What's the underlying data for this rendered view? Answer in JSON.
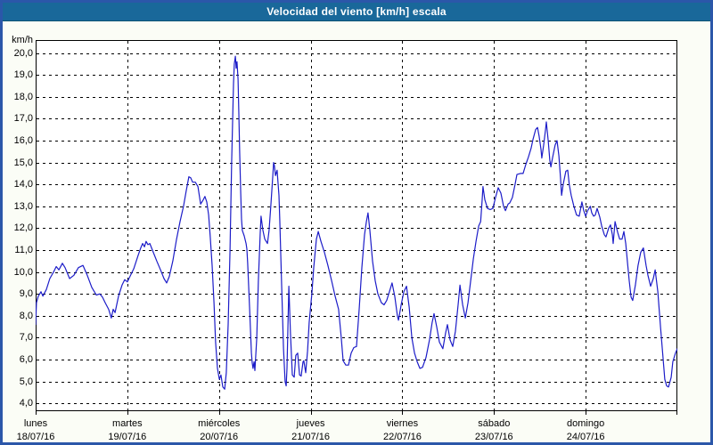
{
  "window": {
    "title": "Velocidad del viento [km/h] escala"
  },
  "colors": {
    "titlebar": "#19689a",
    "window_border": "#2b57a9",
    "window_background": "#fbfdf6",
    "plot_background": "#ffffff",
    "grid": "#000000",
    "line": "#1c1cc8",
    "text": "#000000"
  },
  "chart_data": {
    "type": "line",
    "title": "Velocidad del viento [km/h] escala",
    "y_unit_label": "km/h",
    "ylabel": "km/h",
    "xlabel": "",
    "ylim": [
      4.0,
      20.0
    ],
    "y_tick_step": 1.0,
    "y_tick_labels": [
      "20,0",
      "19,0",
      "18,0",
      "17,0",
      "16,0",
      "15,0",
      "14,0",
      "13,0",
      "12,0",
      "11,0",
      "10,0",
      "9,0",
      "8,0",
      "7,0",
      "6,0",
      "5,0",
      "4,0"
    ],
    "grid": "dashed",
    "legend_position": "none",
    "x_range_hours": [
      0,
      168
    ],
    "x_days": [
      {
        "name": "lunes",
        "date": "18/07/16"
      },
      {
        "name": "martes",
        "date": "19/07/16"
      },
      {
        "name": "miércoles",
        "date": "20/07/16"
      },
      {
        "name": "jueves",
        "date": "21/07/16"
      },
      {
        "name": "viernes",
        "date": "22/07/16"
      },
      {
        "name": "sábado",
        "date": "23/07/16"
      },
      {
        "name": "domingo",
        "date": "24/07/16"
      }
    ],
    "series": [
      {
        "name": "Velocidad del viento",
        "unit": "km/h",
        "color": "#1c1cc8",
        "points": [
          [
            0,
            7.6
          ],
          [
            0.2,
            8.6
          ],
          [
            0.7,
            8.9
          ],
          [
            1.4,
            9.1
          ],
          [
            1.9,
            8.9
          ],
          [
            2.8,
            9.2
          ],
          [
            3.7,
            9.7
          ],
          [
            4.7,
            10.0
          ],
          [
            5.4,
            10.25
          ],
          [
            6.1,
            10.1
          ],
          [
            7,
            10.4
          ],
          [
            7.7,
            10.2
          ],
          [
            8.9,
            9.7
          ],
          [
            10,
            9.85
          ],
          [
            11.2,
            10.2
          ],
          [
            12.4,
            10.3
          ],
          [
            13.5,
            9.85
          ],
          [
            14.7,
            9.3
          ],
          [
            15.9,
            8.95
          ],
          [
            16.8,
            9.0
          ],
          [
            17.5,
            8.85
          ],
          [
            18.2,
            8.6
          ],
          [
            19.1,
            8.3
          ],
          [
            19.8,
            7.9
          ],
          [
            20.3,
            8.3
          ],
          [
            20.8,
            8.15
          ],
          [
            21.7,
            8.9
          ],
          [
            22.6,
            9.4
          ],
          [
            23.3,
            9.65
          ],
          [
            24,
            9.55
          ],
          [
            24.7,
            9.8
          ],
          [
            25.7,
            10.15
          ],
          [
            26.8,
            10.75
          ],
          [
            27.5,
            11.1
          ],
          [
            28,
            11.3
          ],
          [
            28.5,
            11.15
          ],
          [
            28.9,
            11.4
          ],
          [
            29.4,
            11.25
          ],
          [
            29.9,
            11.3
          ],
          [
            30.8,
            10.9
          ],
          [
            31.7,
            10.5
          ],
          [
            32.7,
            10.1
          ],
          [
            33.6,
            9.7
          ],
          [
            34.3,
            9.5
          ],
          [
            35,
            9.8
          ],
          [
            35.9,
            10.5
          ],
          [
            36.9,
            11.5
          ],
          [
            37.8,
            12.3
          ],
          [
            38.7,
            13.0
          ],
          [
            39.4,
            13.7
          ],
          [
            40.1,
            14.35
          ],
          [
            40.6,
            14.3
          ],
          [
            41.1,
            14.1
          ],
          [
            41.8,
            14.1
          ],
          [
            42.5,
            13.9
          ],
          [
            43.2,
            13.1
          ],
          [
            43.9,
            13.3
          ],
          [
            44.3,
            13.45
          ],
          [
            44.8,
            13.2
          ],
          [
            45.3,
            12.6
          ],
          [
            45.7,
            11.6
          ],
          [
            46.2,
            10.3
          ],
          [
            46.7,
            8.6
          ],
          [
            47.1,
            6.8
          ],
          [
            47.6,
            5.6
          ],
          [
            48.1,
            5.1
          ],
          [
            48.5,
            5.3
          ],
          [
            49,
            4.75
          ],
          [
            49.5,
            4.65
          ],
          [
            49.9,
            5.4
          ],
          [
            50.4,
            7.6
          ],
          [
            50.9,
            11.0
          ],
          [
            51.3,
            15.0
          ],
          [
            51.8,
            18.6
          ],
          [
            52,
            19.5
          ],
          [
            52.3,
            19.85
          ],
          [
            52.5,
            19.3
          ],
          [
            52.7,
            19.6
          ],
          [
            53,
            18.8
          ],
          [
            53.2,
            17.2
          ],
          [
            53.4,
            15.5
          ],
          [
            53.7,
            13.6
          ],
          [
            53.9,
            12.4
          ],
          [
            54.1,
            11.9
          ],
          [
            54.6,
            11.65
          ],
          [
            55.1,
            11.3
          ],
          [
            55.3,
            11.05
          ],
          [
            55.5,
            10.4
          ],
          [
            56,
            8.4
          ],
          [
            56.5,
            6.3
          ],
          [
            56.7,
            5.85
          ],
          [
            56.9,
            5.6
          ],
          [
            57.2,
            5.9
          ],
          [
            57.4,
            5.5
          ],
          [
            57.9,
            7.0
          ],
          [
            58.3,
            9.6
          ],
          [
            58.8,
            11.8
          ],
          [
            59,
            12.55
          ],
          [
            59.5,
            11.9
          ],
          [
            60,
            11.5
          ],
          [
            60.7,
            11.3
          ],
          [
            61.1,
            11.9
          ],
          [
            61.6,
            13.1
          ],
          [
            62.1,
            14.4
          ],
          [
            62.3,
            15.0
          ],
          [
            62.5,
            14.85
          ],
          [
            62.8,
            14.4
          ],
          [
            63.2,
            14.65
          ],
          [
            63.7,
            13.5
          ],
          [
            63.9,
            12.4
          ],
          [
            64.4,
            9.4
          ],
          [
            64.9,
            6.5
          ],
          [
            65.3,
            5.0
          ],
          [
            65.6,
            4.8
          ],
          [
            65.8,
            5.6
          ],
          [
            66.3,
            9.35
          ],
          [
            66.7,
            7.2
          ],
          [
            67.2,
            5.3
          ],
          [
            67.7,
            5.2
          ],
          [
            68.1,
            6.2
          ],
          [
            68.6,
            6.3
          ],
          [
            69.1,
            5.3
          ],
          [
            69.5,
            5.25
          ],
          [
            70,
            5.9
          ],
          [
            70.2,
            5.95
          ],
          [
            70.7,
            5.4
          ],
          [
            71.2,
            6.4
          ],
          [
            71.6,
            7.7
          ],
          [
            72.3,
            9.0
          ],
          [
            72.8,
            10.2
          ],
          [
            73.5,
            11.5
          ],
          [
            74,
            11.85
          ],
          [
            74.7,
            11.4
          ],
          [
            75.6,
            10.9
          ],
          [
            76.5,
            10.3
          ],
          [
            77.5,
            9.6
          ],
          [
            78.4,
            8.9
          ],
          [
            79.3,
            8.3
          ],
          [
            80,
            7.0
          ],
          [
            80.5,
            5.95
          ],
          [
            81.2,
            5.75
          ],
          [
            81.9,
            5.75
          ],
          [
            82.6,
            6.3
          ],
          [
            83.3,
            6.55
          ],
          [
            84,
            6.6
          ],
          [
            84.7,
            8.3
          ],
          [
            85.4,
            10.2
          ],
          [
            86.1,
            11.7
          ],
          [
            86.6,
            12.3
          ],
          [
            87,
            12.7
          ],
          [
            87.5,
            11.9
          ],
          [
            88.2,
            10.5
          ],
          [
            88.9,
            9.6
          ],
          [
            89.6,
            9.0
          ],
          [
            90.5,
            8.6
          ],
          [
            91.2,
            8.5
          ],
          [
            91.9,
            8.7
          ],
          [
            92.6,
            9.1
          ],
          [
            93.3,
            9.5
          ],
          [
            94,
            8.9
          ],
          [
            94.7,
            8.0
          ],
          [
            95,
            7.8
          ],
          [
            95.7,
            8.5
          ],
          [
            96.4,
            9.1
          ],
          [
            97.1,
            9.35
          ],
          [
            97.8,
            8.4
          ],
          [
            98.5,
            7.0
          ],
          [
            99.2,
            6.3
          ],
          [
            99.9,
            5.9
          ],
          [
            100.6,
            5.6
          ],
          [
            101.3,
            5.65
          ],
          [
            102.2,
            6.1
          ],
          [
            103.1,
            6.9
          ],
          [
            103.8,
            7.7
          ],
          [
            104.3,
            8.1
          ],
          [
            105,
            7.5
          ],
          [
            105.7,
            6.8
          ],
          [
            106.6,
            6.5
          ],
          [
            107.3,
            7.2
          ],
          [
            107.8,
            7.6
          ],
          [
            108.5,
            6.9
          ],
          [
            109.2,
            6.6
          ],
          [
            109.9,
            7.3
          ],
          [
            110.6,
            8.5
          ],
          [
            111.1,
            9.4
          ],
          [
            111.8,
            8.5
          ],
          [
            112.5,
            7.9
          ],
          [
            113.2,
            8.6
          ],
          [
            113.9,
            9.6
          ],
          [
            114.6,
            10.6
          ],
          [
            115.3,
            11.4
          ],
          [
            116,
            12.1
          ],
          [
            116.5,
            12.3
          ],
          [
            116.9,
            13.3
          ],
          [
            117.1,
            13.9
          ],
          [
            117.6,
            13.3
          ],
          [
            118.3,
            12.9
          ],
          [
            119,
            12.85
          ],
          [
            119.7,
            12.9
          ],
          [
            120.4,
            13.4
          ],
          [
            121.1,
            13.85
          ],
          [
            121.8,
            13.6
          ],
          [
            122.5,
            13.0
          ],
          [
            123,
            12.8
          ],
          [
            123.7,
            13.1
          ],
          [
            124.1,
            13.15
          ],
          [
            124.8,
            13.4
          ],
          [
            125.5,
            14.0
          ],
          [
            126,
            14.45
          ],
          [
            126.9,
            14.5
          ],
          [
            127.6,
            14.5
          ],
          [
            128.3,
            14.9
          ],
          [
            129,
            15.25
          ],
          [
            129.7,
            15.65
          ],
          [
            130.2,
            16.05
          ],
          [
            130.9,
            16.5
          ],
          [
            131.4,
            16.6
          ],
          [
            131.8,
            16.2
          ],
          [
            132.3,
            15.6
          ],
          [
            132.5,
            15.2
          ],
          [
            133,
            15.8
          ],
          [
            133.5,
            16.5
          ],
          [
            133.7,
            16.85
          ],
          [
            134.2,
            16.0
          ],
          [
            134.6,
            15.1
          ],
          [
            134.9,
            14.8
          ],
          [
            135.3,
            15.2
          ],
          [
            136,
            15.8
          ],
          [
            136.5,
            16.0
          ],
          [
            137,
            15.3
          ],
          [
            137.4,
            14.3
          ],
          [
            137.7,
            13.5
          ],
          [
            138.1,
            14.0
          ],
          [
            138.8,
            14.6
          ],
          [
            139.3,
            14.65
          ],
          [
            139.7,
            14.0
          ],
          [
            140.2,
            13.5
          ],
          [
            140.9,
            13.0
          ],
          [
            141.6,
            12.6
          ],
          [
            142.3,
            12.55
          ],
          [
            143,
            13.2
          ],
          [
            143.5,
            12.8
          ],
          [
            144,
            12.55
          ],
          [
            144.5,
            12.8
          ],
          [
            145.2,
            13.0
          ],
          [
            145.6,
            12.7
          ],
          [
            146.1,
            12.55
          ],
          [
            146.5,
            12.6
          ],
          [
            147,
            12.9
          ],
          [
            147.7,
            12.5
          ],
          [
            148.2,
            12.1
          ],
          [
            148.9,
            11.7
          ],
          [
            149.3,
            11.6
          ],
          [
            150,
            12.0
          ],
          [
            150.5,
            12.15
          ],
          [
            151,
            11.7
          ],
          [
            151.2,
            11.3
          ],
          [
            151.7,
            12.3
          ],
          [
            152.4,
            11.8
          ],
          [
            152.9,
            11.5
          ],
          [
            153.5,
            11.5
          ],
          [
            154,
            11.85
          ],
          [
            154.5,
            11.3
          ],
          [
            154.9,
            10.5
          ],
          [
            155.4,
            9.6
          ],
          [
            155.9,
            8.85
          ],
          [
            156.3,
            8.7
          ],
          [
            157,
            9.4
          ],
          [
            157.7,
            10.3
          ],
          [
            158.4,
            10.9
          ],
          [
            159.1,
            11.1
          ],
          [
            159.8,
            10.3
          ],
          [
            160.3,
            9.85
          ],
          [
            161,
            9.35
          ],
          [
            161.7,
            9.7
          ],
          [
            162.2,
            10.1
          ],
          [
            162.9,
            9.1
          ],
          [
            163.6,
            7.5
          ],
          [
            164.3,
            6.0
          ],
          [
            164.7,
            5.1
          ],
          [
            165.2,
            4.8
          ],
          [
            165.7,
            4.75
          ],
          [
            166.4,
            5.2
          ],
          [
            166.8,
            5.9
          ],
          [
            167.5,
            6.3
          ],
          [
            168,
            6.5
          ]
        ]
      }
    ]
  }
}
